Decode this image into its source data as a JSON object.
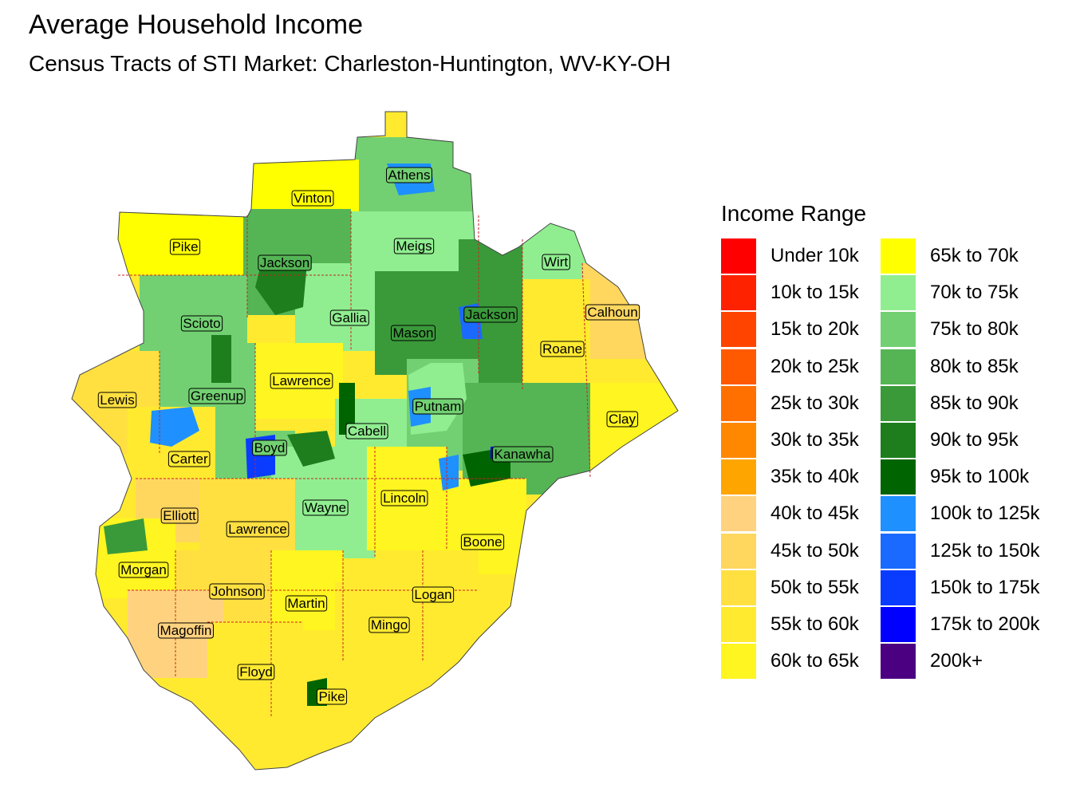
{
  "title": "Average Household Income",
  "subtitle": "Census Tracts of STI Market: Charleston-Huntington, WV-KY-OH",
  "legend": {
    "title": "Income Range",
    "items": [
      {
        "label": "Under 10k",
        "color": "#FF0000"
      },
      {
        "label": "10k to 15k",
        "color": "#FF2200"
      },
      {
        "label": "15k to 20k",
        "color": "#FF4400"
      },
      {
        "label": "20k to 25k",
        "color": "#FF5A00"
      },
      {
        "label": "25k to 30k",
        "color": "#FF7000"
      },
      {
        "label": "30k to 35k",
        "color": "#FF8800"
      },
      {
        "label": "35k to 40k",
        "color": "#FFA500"
      },
      {
        "label": "40k to 45k",
        "color": "#FFD27F"
      },
      {
        "label": "45k to 50k",
        "color": "#FFD75F"
      },
      {
        "label": "50k to 55k",
        "color": "#FFE040"
      },
      {
        "label": "55k to 60k",
        "color": "#FFEA30"
      },
      {
        "label": "60k to 65k",
        "color": "#FFF520"
      },
      {
        "label": "65k to 70k",
        "color": "#FFFF00"
      },
      {
        "label": "70k to 75k",
        "color": "#90EE90"
      },
      {
        "label": "75k to 80k",
        "color": "#72D072"
      },
      {
        "label": "80k to 85k",
        "color": "#55B555"
      },
      {
        "label": "85k to 90k",
        "color": "#3A9A3A"
      },
      {
        "label": "90k to 95k",
        "color": "#1E7E1E"
      },
      {
        "label": "95k to 100k",
        "color": "#006400"
      },
      {
        "label": "100k to 125k",
        "color": "#1E90FF"
      },
      {
        "label": "125k to 150k",
        "color": "#1A6AFF"
      },
      {
        "label": "150k to 175k",
        "color": "#0A3CFF"
      },
      {
        "label": "175k to 200k",
        "color": "#0000FF"
      },
      {
        "label": "200k+",
        "color": "#4B0082"
      }
    ]
  },
  "counties": [
    {
      "name": "Athens",
      "color": "#72D072"
    },
    {
      "name": "Vinton",
      "color": "#FFFF00"
    },
    {
      "name": "Meigs",
      "color": "#90EE90"
    },
    {
      "name": "Pike",
      "color": "#FFFF00"
    },
    {
      "name": "Jackson",
      "color": "#55B555"
    },
    {
      "name": "Wirt",
      "color": "#90EE90"
    },
    {
      "name": "Calhoun",
      "color": "#FFD75F"
    },
    {
      "name": "Scioto",
      "color": "#72D072"
    },
    {
      "name": "Gallia",
      "color": "#90EE90"
    },
    {
      "name": "Mason",
      "color": "#3A9A3A"
    },
    {
      "name": "Jackson",
      "color": "#3A9A3A"
    },
    {
      "name": "Roane",
      "color": "#FFEA30"
    },
    {
      "name": "Lewis",
      "color": "#FFE040"
    },
    {
      "name": "Greenup",
      "color": "#72D072"
    },
    {
      "name": "Lawrence",
      "color": "#FFF520"
    },
    {
      "name": "Putnam",
      "color": "#72D072"
    },
    {
      "name": "Clay",
      "color": "#FFF520"
    },
    {
      "name": "Cabell",
      "color": "#90EE90"
    },
    {
      "name": "Kanawha",
      "color": "#55B555"
    },
    {
      "name": "Carter",
      "color": "#FFEA30"
    },
    {
      "name": "Boyd",
      "color": "#72D072"
    },
    {
      "name": "Wayne",
      "color": "#90EE90"
    },
    {
      "name": "Lincoln",
      "color": "#FFF520"
    },
    {
      "name": "Elliott",
      "color": "#FFD75F"
    },
    {
      "name": "Lawrence",
      "color": "#FFE040"
    },
    {
      "name": "Boone",
      "color": "#FFF520"
    },
    {
      "name": "Morgan",
      "color": "#FFF520"
    },
    {
      "name": "Johnson",
      "color": "#FFE040"
    },
    {
      "name": "Martin",
      "color": "#FFF520"
    },
    {
      "name": "Logan",
      "color": "#FFEA30"
    },
    {
      "name": "Mingo",
      "color": "#FFEA30"
    },
    {
      "name": "Magoffin",
      "color": "#FFD27F"
    },
    {
      "name": "Floyd",
      "color": "#FFEA30"
    },
    {
      "name": "Pike",
      "color": "#FFEA30"
    }
  ]
}
